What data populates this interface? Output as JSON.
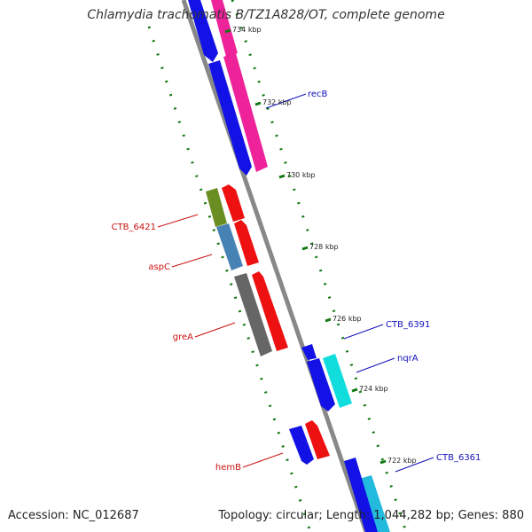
{
  "title": "Chlamydia trachomatis B/TZ1A828/OT, complete genome",
  "footer": {
    "accession": "Accession: NC_012687",
    "summary": "Topology: circular; Length: 1,044,282 bp; Genes: 880"
  },
  "colors": {
    "backbone": "#888888",
    "tick": "#117711",
    "forward_label": "#1111bb",
    "reverse_label": "#cc1111",
    "blue": "#1212e6",
    "magenta": "#ee2299",
    "red": "#ee1111",
    "olive": "#6b8e23",
    "steel": "#4682b4",
    "grey": "#666666",
    "cyan": "#11dddd",
    "skyblue": "#22bbdd"
  },
  "map": {
    "ticks": [
      {
        "label": "734 kbp"
      },
      {
        "label": "732 kbp"
      },
      {
        "label": "730 kbp"
      },
      {
        "label": "728 kbp"
      },
      {
        "label": "726 kbp"
      },
      {
        "label": "724 kbp"
      },
      {
        "label": "722 kbp"
      }
    ],
    "forward_labels": [
      {
        "name": "recB"
      },
      {
        "name": "CTB_6391"
      },
      {
        "name": "nqrA"
      },
      {
        "name": "CTB_6361"
      }
    ],
    "reverse_labels": [
      {
        "name": "CTB_6421"
      },
      {
        "name": "aspC"
      },
      {
        "name": "greA"
      },
      {
        "name": "hemB"
      }
    ]
  }
}
